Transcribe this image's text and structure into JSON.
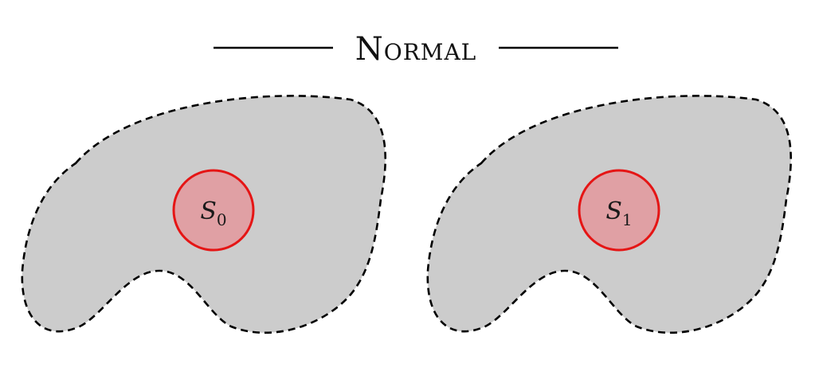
{
  "title": "Normal",
  "colors": {
    "region_fill": "#cccccc",
    "region_stroke": "#000000",
    "circle_fill": "#e0a0a4",
    "circle_stroke": "#e51515"
  },
  "sets": [
    {
      "symbol": "S",
      "subscript": "0"
    },
    {
      "symbol": "S",
      "subscript": "1"
    }
  ]
}
